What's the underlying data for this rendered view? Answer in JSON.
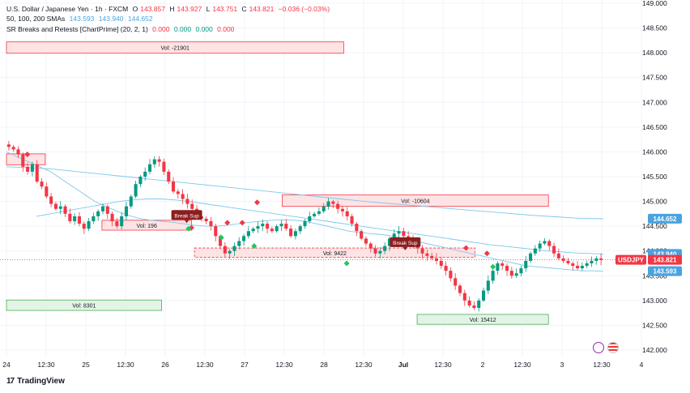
{
  "legend": {
    "symbol": "U.S. Dollar / Japanese Yen · 1h · FXCM",
    "open_label": "O",
    "open": "143.857",
    "high_label": "H",
    "high": "143.927",
    "low_label": "L",
    "low": "143.751",
    "close_label": "C",
    "close": "143.821",
    "change": "−0.036 (−0.03%)",
    "sma_label": "50, 100, 200 SMAs",
    "sma_values": [
      "143.593",
      "143.940",
      "144.652"
    ],
    "sr_label": "SR Breaks and Retests [ChartPrime] (20, 2, 1)",
    "sr_values": [
      "0.000",
      "0.000",
      "0.000",
      "0.000"
    ]
  },
  "brand": {
    "name": "TradingView",
    "logo": "17"
  },
  "colors": {
    "up": "#089981",
    "down": "#f23645",
    "sma": "#7ec8ea",
    "zone_red_fill": "#fde3e4",
    "zone_red_border": "#f23645",
    "zone_green_fill": "#e3f3e6",
    "zone_green_border": "#4caf50"
  },
  "chart_data": {
    "type": "candlestick",
    "y_axis_ticks": [
      "149.000",
      "148.500",
      "148.000",
      "147.500",
      "147.000",
      "146.500",
      "146.000",
      "145.500",
      "145.000",
      "144.500",
      "144.000",
      "143.500",
      "143.000",
      "142.500",
      "142.000"
    ],
    "x_axis_ticks": [
      "24",
      "12:30",
      "25",
      "12:30",
      "26",
      "12:30",
      "27",
      "12:30",
      "28",
      "12:30",
      "Jul",
      "12:30",
      "2",
      "12:30",
      "3",
      "12:30",
      "4"
    ],
    "ylim": [
      142.0,
      149.0
    ],
    "price_labels": [
      {
        "text": "144.652",
        "value": 144.652,
        "color": "#4aa3df"
      },
      {
        "text": "143.940",
        "value": 143.94,
        "color": "#4aa3df"
      },
      {
        "text": "USDJPY",
        "value": 143.821,
        "color": "#f23645"
      },
      {
        "text": "143.821",
        "value": 143.821,
        "color": "#f23645"
      },
      {
        "text": "143.593",
        "value": 143.593,
        "color": "#4aa3df"
      }
    ],
    "zones": [
      {
        "label": "Vol: -21901",
        "top": 148.22,
        "bottom": 147.99,
        "x_start": 0,
        "x_end": 0.565,
        "type": "red"
      },
      {
        "label": "",
        "top": 145.96,
        "bottom": 145.74,
        "x_start": 0,
        "x_end": 0.065,
        "type": "red"
      },
      {
        "label": "Vol: -10604",
        "top": 145.13,
        "bottom": 144.9,
        "x_start": 0.462,
        "x_end": 0.908,
        "type": "red"
      },
      {
        "label": "Vol: 196",
        "top": 144.62,
        "bottom": 144.42,
        "x_start": 0.16,
        "x_end": 0.31,
        "type": "red"
      },
      {
        "label": "Vol: 9422",
        "top": 144.06,
        "bottom": 143.87,
        "x_start": 0.315,
        "x_end": 0.785,
        "type": "red"
      },
      {
        "label": "Vol: 8301",
        "top": 143.01,
        "bottom": 142.8,
        "x_start": 0,
        "x_end": 0.26,
        "type": "green"
      },
      {
        "label": "Vol: 15412",
        "top": 142.72,
        "bottom": 142.52,
        "x_start": 0.688,
        "x_end": 0.908,
        "type": "green"
      }
    ],
    "annotations": [
      {
        "text": "Break Sup",
        "x": 0.302,
        "value": 144.71
      },
      {
        "text": "Break Sup",
        "x": 0.668,
        "value": 144.16
      }
    ],
    "close_series": [
      146.1,
      146.05,
      145.95,
      145.7,
      145.6,
      145.75,
      145.4,
      145.3,
      145.1,
      144.95,
      144.85,
      144.9,
      144.75,
      144.6,
      144.7,
      144.55,
      144.45,
      144.6,
      144.7,
      144.8,
      144.9,
      144.75,
      144.6,
      144.5,
      144.7,
      144.9,
      145.1,
      145.35,
      145.5,
      145.6,
      145.75,
      145.85,
      145.8,
      145.6,
      145.4,
      145.2,
      145.15,
      145.05,
      144.95,
      144.85,
      144.7,
      144.65,
      144.6,
      144.5,
      144.3,
      144.1,
      143.95,
      144.0,
      144.1,
      144.2,
      144.3,
      144.4,
      144.45,
      144.5,
      144.55,
      144.45,
      144.4,
      144.5,
      144.55,
      144.45,
      144.3,
      144.4,
      144.5,
      144.6,
      144.7,
      144.75,
      144.8,
      144.9,
      145.0,
      144.95,
      144.85,
      144.8,
      144.7,
      144.55,
      144.4,
      144.25,
      144.15,
      144.05,
      143.95,
      144.0,
      144.1,
      144.25,
      144.35,
      144.4,
      144.3,
      144.25,
      144.15,
      144.05,
      143.95,
      143.9,
      143.85,
      143.8,
      143.7,
      143.6,
      143.45,
      143.3,
      143.15,
      143.0,
      142.9,
      142.85,
      143.0,
      143.2,
      143.4,
      143.6,
      143.75,
      143.7,
      143.6,
      143.5,
      143.55,
      143.65,
      143.8,
      143.95,
      144.05,
      144.15,
      144.2,
      144.1,
      143.95,
      143.85,
      143.8,
      143.75,
      143.7,
      143.65,
      143.7,
      143.75,
      143.8,
      143.85,
      143.82
    ],
    "sma_fast": [
      146.0,
      145.9,
      145.8,
      145.7,
      145.6,
      145.45,
      145.3,
      145.15,
      145.0,
      144.9,
      144.8,
      144.72,
      144.66,
      144.62,
      144.6,
      144.58,
      144.55,
      144.52,
      144.5,
      144.5,
      144.52,
      144.55,
      144.58,
      144.6,
      144.62,
      144.63,
      144.62,
      144.6,
      144.55,
      144.5,
      144.45,
      144.4,
      144.37,
      144.35,
      144.33,
      144.3,
      144.25,
      144.2,
      144.15,
      144.1,
      144.05,
      144.0,
      143.95,
      143.9,
      143.85,
      143.8,
      143.75,
      143.7,
      143.68,
      143.66,
      143.64,
      143.62,
      143.6,
      143.6,
      143.59
    ],
    "sma_mid": [
      144.7,
      144.75,
      144.8,
      144.85,
      144.9,
      144.95,
      145.0,
      145.03,
      145.05,
      145.05,
      145.03,
      145.0,
      144.96,
      144.92,
      144.88,
      144.84,
      144.8,
      144.76,
      144.72,
      144.68,
      144.64,
      144.6,
      144.56,
      144.52,
      144.48,
      144.44,
      144.4,
      144.36,
      144.32,
      144.28,
      144.24,
      144.2,
      144.16,
      144.12,
      144.09,
      144.06,
      144.03,
      144.0,
      143.98,
      143.96,
      143.95,
      143.94
    ],
    "sma_slow": [
      145.7,
      145.68,
      145.65,
      145.6,
      145.55,
      145.5,
      145.45,
      145.4,
      145.35,
      145.3,
      145.25,
      145.2,
      145.15,
      145.1,
      145.05,
      145.0,
      144.96,
      144.92,
      144.88,
      144.84,
      144.8,
      144.76,
      144.72,
      144.69,
      144.66,
      144.65
    ]
  }
}
